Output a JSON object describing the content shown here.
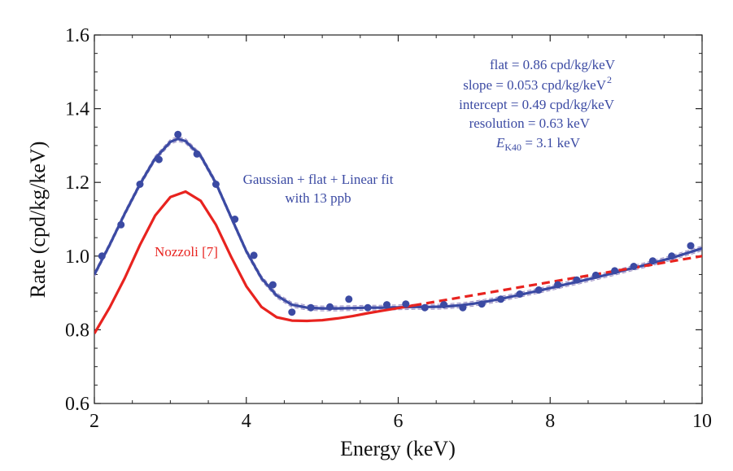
{
  "chart_data": {
    "type": "line",
    "title": "",
    "xlabel": "Energy (keV)",
    "ylabel": "Rate (cpd/kg/keV)",
    "xlim": [
      2,
      10
    ],
    "ylim": [
      0.6,
      1.6
    ],
    "x_ticks": [
      "2",
      "4",
      "6",
      "8",
      "10"
    ],
    "y_ticks": [
      "0.6",
      "0.8",
      "1.0",
      "1.2",
      "1.4",
      "1.6"
    ],
    "grid": false,
    "colors": {
      "fit": "#3b4aa3",
      "nozzoli": "#e8231f",
      "data": "#3b4aa3",
      "band": "#9b8fc4"
    },
    "data_points": {
      "name": "data",
      "x": [
        2.1,
        2.35,
        2.6,
        2.85,
        3.1,
        3.35,
        3.6,
        3.85,
        4.1,
        4.35,
        4.6,
        4.85,
        5.1,
        5.35,
        5.6,
        5.85,
        6.1,
        6.35,
        6.6,
        6.85,
        7.1,
        7.35,
        7.6,
        7.85,
        8.1,
        8.35,
        8.6,
        8.85,
        9.1,
        9.35,
        9.6,
        9.85
      ],
      "y": [
        1.0,
        1.085,
        1.195,
        1.262,
        1.33,
        1.277,
        1.195,
        1.1,
        1.002,
        0.922,
        0.848,
        0.86,
        0.862,
        0.883,
        0.86,
        0.868,
        0.87,
        0.86,
        0.868,
        0.86,
        0.87,
        0.883,
        0.897,
        0.908,
        0.922,
        0.935,
        0.948,
        0.96,
        0.972,
        0.987,
        1.0,
        1.028
      ]
    },
    "series": [
      {
        "name": "Gaussian + flat + Linear fit with 13 ppb",
        "style": "solid",
        "x": [
          2.0,
          2.2,
          2.4,
          2.6,
          2.8,
          3.0,
          3.1,
          3.2,
          3.4,
          3.6,
          3.8,
          4.0,
          4.2,
          4.4,
          4.6,
          4.8,
          5.0,
          5.2,
          5.4,
          5.6,
          5.8,
          6.0,
          6.2,
          6.4,
          6.6,
          6.8,
          7.0,
          7.2,
          7.4,
          7.6,
          7.8,
          8.0,
          8.2,
          8.4,
          8.6,
          8.8,
          9.0,
          9.2,
          9.4,
          9.6,
          9.8,
          10.0
        ],
        "y": [
          0.95,
          1.03,
          1.115,
          1.195,
          1.265,
          1.31,
          1.318,
          1.312,
          1.272,
          1.198,
          1.105,
          1.013,
          0.94,
          0.893,
          0.868,
          0.86,
          0.858,
          0.858,
          0.859,
          0.86,
          0.86,
          0.861,
          0.862,
          0.862,
          0.863,
          0.866,
          0.871,
          0.878,
          0.886,
          0.895,
          0.904,
          0.913,
          0.923,
          0.932,
          0.942,
          0.952,
          0.963,
          0.973,
          0.984,
          0.995,
          1.008,
          1.021
        ]
      },
      {
        "name": "Nozzoli [7]",
        "style": "solid",
        "x": [
          2.0,
          2.2,
          2.4,
          2.6,
          2.8,
          3.0,
          3.2,
          3.4,
          3.6,
          3.8,
          4.0,
          4.2,
          4.4,
          4.6,
          4.8,
          5.0,
          5.2,
          5.4,
          5.6,
          5.8,
          6.0,
          6.2
        ],
        "y": [
          0.79,
          0.86,
          0.94,
          1.03,
          1.11,
          1.16,
          1.175,
          1.15,
          1.085,
          0.998,
          0.918,
          0.862,
          0.834,
          0.825,
          0.824,
          0.826,
          0.831,
          0.837,
          0.845,
          0.852,
          0.859,
          0.866
        ]
      },
      {
        "name": "Nozzoli [7] extrapolation",
        "style": "dashed",
        "x": [
          6.2,
          10.0
        ],
        "y": [
          0.866,
          1.0
        ]
      }
    ],
    "annotations": {
      "fit_label_line1": "Gaussian + flat + Linear fit",
      "fit_label_line2": "with 13 ppb",
      "nozzoli_label": "Nozzoli [7]",
      "param_flat": "flat = 0.86 cpd/kg/keV",
      "param_slope": "slope = 0.053 cpd/kg/keV",
      "param_slope_sup": "2",
      "param_intercept": "intercept = 0.49 cpd/kg/keV",
      "param_resolution": "resolution = 0.63 keV",
      "param_e_symbol": "E",
      "param_e_sub": "K40",
      "param_e_value": " = 3.1 keV"
    }
  }
}
